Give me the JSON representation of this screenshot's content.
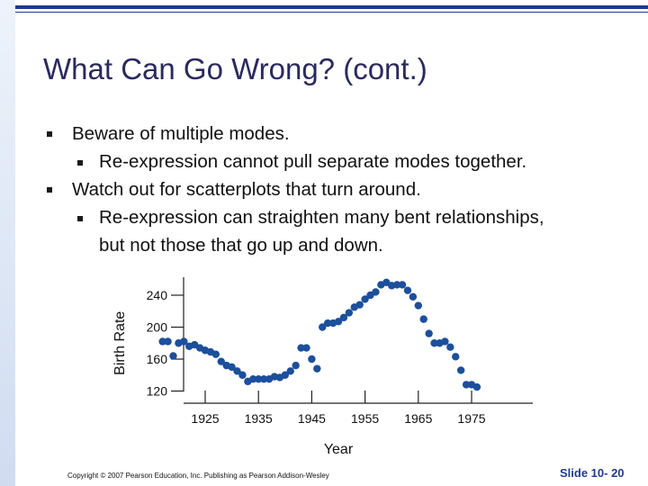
{
  "slide": {
    "title": "What Can Go Wrong? (cont.)",
    "bullets": [
      {
        "text": "Beware of multiple modes.",
        "sub": [
          "Re-expression cannot pull separate modes together."
        ]
      },
      {
        "text": "Watch out for scatterplots that turn around.",
        "sub": [
          "Re-expression can straighten many bent relationships,",
          "but not those that go up and down."
        ]
      }
    ],
    "footer": "Copyright © 2007 Pearson Education, Inc. Publishing as Pearson Addison-Wesley",
    "slide_number": "Slide 10- 20"
  },
  "colors": {
    "accent": "#1f3b8c",
    "points": "#1c4f9c"
  },
  "chart_data": {
    "type": "scatter",
    "title": "",
    "xlabel": "Year",
    "ylabel": "Birth Rate",
    "xlim": [
      1915,
      1980
    ],
    "ylim": [
      110,
      265
    ],
    "xticks": [
      1925,
      1935,
      1945,
      1955,
      1965,
      1975
    ],
    "yticks": [
      120,
      160,
      200,
      240
    ],
    "grid": false,
    "points": [
      [
        1917,
        182
      ],
      [
        1918,
        182
      ],
      [
        1919,
        164
      ],
      [
        1920,
        180
      ],
      [
        1921,
        182
      ],
      [
        1922,
        176
      ],
      [
        1923,
        178
      ],
      [
        1924,
        174
      ],
      [
        1925,
        171
      ],
      [
        1926,
        169
      ],
      [
        1927,
        166
      ],
      [
        1928,
        157
      ],
      [
        1929,
        152
      ],
      [
        1930,
        150
      ],
      [
        1931,
        145
      ],
      [
        1932,
        140
      ],
      [
        1933,
        132
      ],
      [
        1934,
        135
      ],
      [
        1935,
        135
      ],
      [
        1936,
        135
      ],
      [
        1937,
        135
      ],
      [
        1938,
        138
      ],
      [
        1939,
        137
      ],
      [
        1940,
        140
      ],
      [
        1941,
        145
      ],
      [
        1942,
        152
      ],
      [
        1943,
        174
      ],
      [
        1944,
        174
      ],
      [
        1945,
        160
      ],
      [
        1946,
        148
      ],
      [
        1947,
        200
      ],
      [
        1948,
        205
      ],
      [
        1949,
        205
      ],
      [
        1950,
        207
      ],
      [
        1951,
        212
      ],
      [
        1952,
        218
      ],
      [
        1953,
        225
      ],
      [
        1954,
        228
      ],
      [
        1955,
        235
      ],
      [
        1956,
        240
      ],
      [
        1957,
        244
      ],
      [
        1958,
        253
      ],
      [
        1959,
        256
      ],
      [
        1960,
        252
      ],
      [
        1961,
        253
      ],
      [
        1962,
        253
      ],
      [
        1963,
        246
      ],
      [
        1964,
        238
      ],
      [
        1965,
        227
      ],
      [
        1966,
        210
      ],
      [
        1967,
        192
      ],
      [
        1968,
        180
      ],
      [
        1969,
        180
      ],
      [
        1970,
        182
      ],
      [
        1971,
        175
      ],
      [
        1972,
        163
      ],
      [
        1973,
        146
      ],
      [
        1974,
        128
      ],
      [
        1975,
        128
      ],
      [
        1976,
        125
      ]
    ]
  }
}
